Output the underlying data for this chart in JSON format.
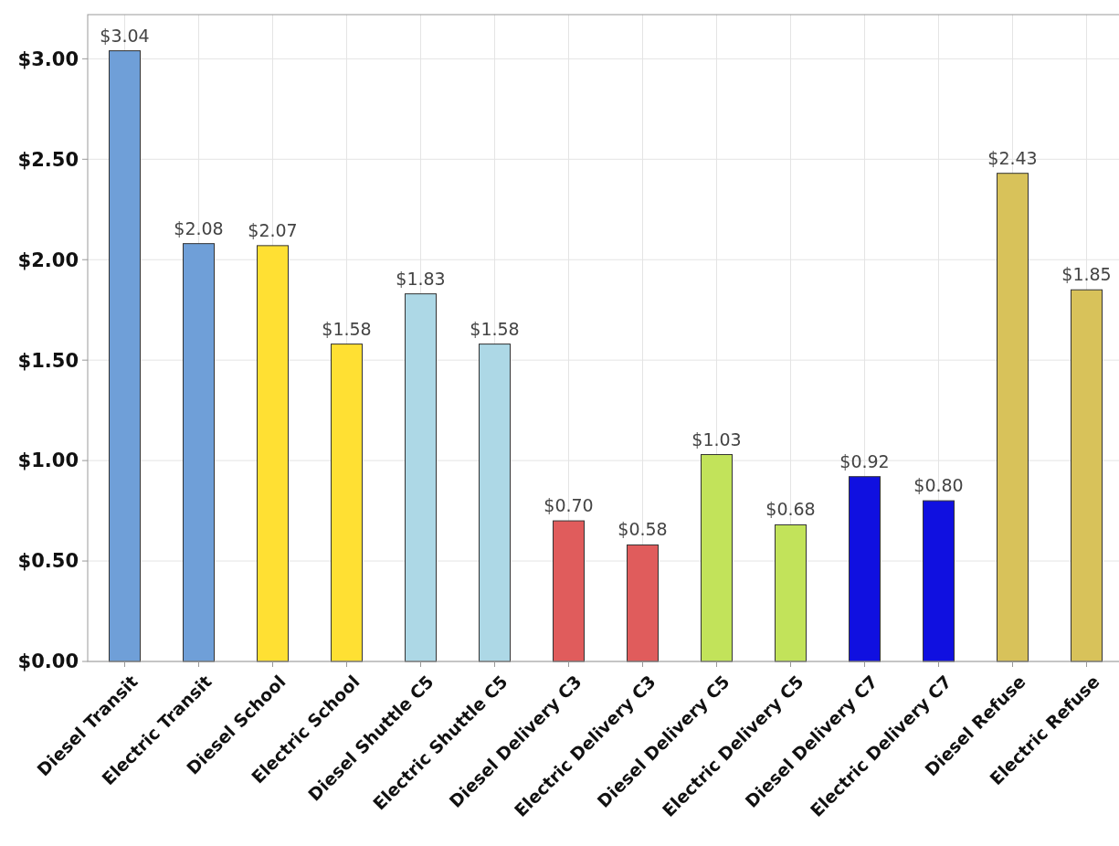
{
  "chart_data": {
    "type": "bar",
    "categories": [
      "Diesel Transit",
      "Electric Transit",
      "Diesel School",
      "Electric School",
      "Diesel Shuttle C5",
      "Electric Shuttle C5",
      "Diesel Delivery C3",
      "Electric Delivery C3",
      "Diesel Delivery C5",
      "Electric Delivery C5",
      "Diesel Delivery C7",
      "Electric Delivery C7",
      "Diesel Refuse",
      "Electric Refuse"
    ],
    "values": [
      3.04,
      2.08,
      2.07,
      1.58,
      1.83,
      1.58,
      0.7,
      0.58,
      1.03,
      0.68,
      0.92,
      0.8,
      2.43,
      1.85
    ],
    "colors": [
      "#6f9fd8",
      "#6f9fd8",
      "#ffe033",
      "#ffe033",
      "#add8e6",
      "#add8e6",
      "#e05c5c",
      "#e05c5c",
      "#c2e35a",
      "#c2e35a",
      "#1010e0",
      "#1010e0",
      "#d8c25a",
      "#d8c25a"
    ],
    "value_labels": [
      "$3.04",
      "$2.08",
      "$2.07",
      "$1.58",
      "$1.83",
      "$1.58",
      "$0.70",
      "$0.58",
      "$1.03",
      "$0.68",
      "$0.92",
      "$0.80",
      "$2.43",
      "$1.85"
    ],
    "ylim": [
      0,
      3.22
    ],
    "yticks": [
      {
        "value": 0,
        "label": "$0.00"
      },
      {
        "value": 0.5,
        "label": "$0.50"
      },
      {
        "value": 1,
        "label": "$1.00"
      },
      {
        "value": 1.5,
        "label": "$1.50"
      },
      {
        "value": 2,
        "label": "$2.00"
      },
      {
        "value": 2.5,
        "label": "$2.50"
      },
      {
        "value": 3,
        "label": "$3.00"
      }
    ],
    "grid": true
  }
}
